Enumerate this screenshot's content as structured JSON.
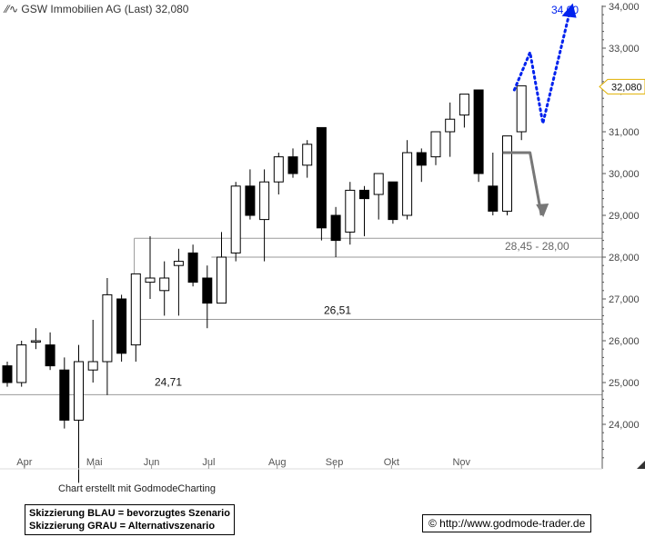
{
  "title": "GSW Immobilien AG (Last) 32,080",
  "chart_data": {
    "type": "candlestick",
    "ylim": [
      23.1,
      34.2
    ],
    "y_ticks": [
      "34,000",
      "33,000",
      "32,000",
      "31,000",
      "30,000",
      "29,000",
      "28,000",
      "27,000",
      "26,000",
      "25,000",
      "24,000"
    ],
    "y_tick_values": [
      34,
      33,
      32,
      31,
      30,
      29,
      28,
      27,
      26,
      25,
      24
    ],
    "x_ticks": [
      "Apr",
      "Mai",
      "Jun",
      "Jul",
      "Aug",
      "Sep",
      "Okt",
      "Nov"
    ],
    "x_tick_index": [
      1.2,
      6.1,
      10.1,
      14.1,
      18.9,
      22.9,
      26.9,
      31.8
    ],
    "last_price_label": "32,080",
    "last_price": 32.08,
    "candles": [
      {
        "o": 25.4,
        "h": 25.5,
        "l": 24.9,
        "c": 25.0
      },
      {
        "o": 25.0,
        "h": 26.0,
        "l": 24.9,
        "c": 25.9
      },
      {
        "o": 26.0,
        "h": 26.3,
        "l": 25.8,
        "c": 26.0
      },
      {
        "o": 25.9,
        "h": 26.2,
        "l": 25.3,
        "c": 25.4
      },
      {
        "o": 25.3,
        "h": 25.6,
        "l": 23.9,
        "c": 24.1
      },
      {
        "o": 24.1,
        "h": 25.9,
        "l": 22.6,
        "c": 25.5
      },
      {
        "o": 25.3,
        "h": 26.5,
        "l": 25.0,
        "c": 25.5
      },
      {
        "o": 25.5,
        "h": 27.5,
        "l": 24.7,
        "c": 27.1
      },
      {
        "o": 27.0,
        "h": 27.1,
        "l": 25.5,
        "c": 25.7
      },
      {
        "o": 25.9,
        "h": 27.6,
        "l": 25.5,
        "c": 27.6
      },
      {
        "o": 27.4,
        "h": 28.5,
        "l": 27.0,
        "c": 27.5
      },
      {
        "o": 27.2,
        "h": 27.9,
        "l": 26.6,
        "c": 27.5
      },
      {
        "o": 27.8,
        "h": 28.2,
        "l": 26.6,
        "c": 27.9
      },
      {
        "o": 28.1,
        "h": 28.3,
        "l": 27.3,
        "c": 27.4
      },
      {
        "o": 27.5,
        "h": 27.8,
        "l": 26.3,
        "c": 26.9
      },
      {
        "o": 26.9,
        "h": 28.6,
        "l": 26.9,
        "c": 28.0
      },
      {
        "o": 28.1,
        "h": 29.8,
        "l": 27.9,
        "c": 29.7
      },
      {
        "o": 29.7,
        "h": 30.1,
        "l": 28.9,
        "c": 29.0
      },
      {
        "o": 28.9,
        "h": 30.1,
        "l": 27.9,
        "c": 29.8
      },
      {
        "o": 29.8,
        "h": 30.5,
        "l": 29.5,
        "c": 30.4
      },
      {
        "o": 30.4,
        "h": 30.6,
        "l": 29.9,
        "c": 30.0
      },
      {
        "o": 30.2,
        "h": 30.8,
        "l": 29.9,
        "c": 30.7
      },
      {
        "o": 31.1,
        "h": 31.1,
        "l": 28.4,
        "c": 28.7
      },
      {
        "o": 29.0,
        "h": 29.2,
        "l": 28.0,
        "c": 28.4
      },
      {
        "o": 28.6,
        "h": 29.8,
        "l": 28.3,
        "c": 29.6
      },
      {
        "o": 29.6,
        "h": 29.7,
        "l": 28.5,
        "c": 29.4
      },
      {
        "o": 29.5,
        "h": 30.0,
        "l": 28.9,
        "c": 30.0
      },
      {
        "o": 29.8,
        "h": 29.8,
        "l": 28.8,
        "c": 28.9
      },
      {
        "o": 29.0,
        "h": 30.8,
        "l": 28.9,
        "c": 30.5
      },
      {
        "o": 30.5,
        "h": 30.6,
        "l": 29.8,
        "c": 30.2
      },
      {
        "o": 30.4,
        "h": 31.0,
        "l": 30.2,
        "c": 31.0
      },
      {
        "o": 31.0,
        "h": 31.7,
        "l": 30.4,
        "c": 31.3
      },
      {
        "o": 31.4,
        "h": 31.9,
        "l": 31.1,
        "c": 31.9
      },
      {
        "o": 32.0,
        "h": 32.0,
        "l": 29.8,
        "c": 30.0
      },
      {
        "o": 29.7,
        "h": 30.5,
        "l": 29.0,
        "c": 29.1
      },
      {
        "o": 29.1,
        "h": 30.9,
        "l": 29.0,
        "c": 30.9
      },
      {
        "o": 31.0,
        "h": 32.1,
        "l": 30.8,
        "c": 32.1
      }
    ],
    "levels": [
      {
        "value": 28.45,
        "start_index": 9.4,
        "label": ""
      },
      {
        "value": 28.0,
        "start_index": 14.8,
        "label": "28,45 - 28,00"
      },
      {
        "value": 26.51,
        "start_index": 9.6,
        "label": "26,51"
      },
      {
        "value": 24.71,
        "start_index": -1.0,
        "label": "24,71"
      }
    ],
    "scenario_blue": {
      "points": [
        [
          35.5,
          32.0
        ],
        [
          36.6,
          32.9
        ],
        [
          37.5,
          31.2
        ],
        [
          39.4,
          33.9
        ]
      ],
      "target_label": "34,00",
      "color": "#0022ee"
    },
    "scenario_gray": {
      "points": [
        [
          34.7,
          30.5
        ],
        [
          36.6,
          30.5
        ],
        [
          37.4,
          29.0
        ]
      ],
      "color": "#777777"
    },
    "grid": false
  },
  "footer": {
    "creator_note": "Chart erstellt mit GodmodeCharting",
    "legend_line1": "Skizzierung BLAU = bevorzugtes Szenario",
    "legend_line2": "Skizzierung GRAU = Alternativszenario",
    "copyright": "© http://www.godmode-trader.de"
  },
  "colors": {
    "up_fill": "#ffffff",
    "down_fill": "#000000",
    "axis": "#555555",
    "level_line": "#9a9a9a",
    "blue": "#0022ee",
    "gray": "#777777",
    "price_tag_border": "#e0b000"
  }
}
